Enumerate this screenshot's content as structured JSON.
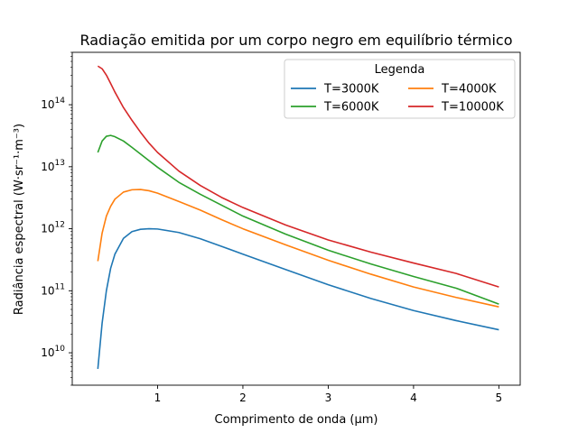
{
  "chart_data": {
    "type": "line",
    "title": "Radiação emitida por um corpo negro em equilíbrio térmico",
    "xlabel": "Comprimento de onda (μm)",
    "ylabel": "Radiância espectral (W·sr⁻¹·m⁻³)",
    "xlim": [
      0.0,
      5.25
    ],
    "ylim": [
      3000000000.0,
      700000000000000.0
    ],
    "yscale": "log",
    "grid": false,
    "x_ticks": [
      1,
      2,
      3,
      4,
      5
    ],
    "y_ticks": [
      {
        "value": 10000000000.0,
        "base": "10",
        "exp": "10"
      },
      {
        "value": 100000000000.0,
        "base": "10",
        "exp": "11"
      },
      {
        "value": 1000000000000.0,
        "base": "10",
        "exp": "12"
      },
      {
        "value": 10000000000000.0,
        "base": "10",
        "exp": "13"
      },
      {
        "value": 100000000000000.0,
        "base": "10",
        "exp": "14"
      }
    ],
    "legend": {
      "title": "Legenda",
      "position": "top-right",
      "columns": 2
    },
    "x": [
      0.3,
      0.35,
      0.4,
      0.45,
      0.5,
      0.6,
      0.7,
      0.8,
      0.9,
      1.0,
      1.25,
      1.5,
      1.75,
      2.0,
      2.5,
      3.0,
      3.5,
      4.0,
      4.5,
      5.0
    ],
    "series": [
      {
        "name": "T=3000K",
        "color": "#1f77b4",
        "values": [
          5500000000.0,
          30000000000.0,
          100000000000.0,
          230000000000.0,
          390000000000.0,
          700000000000.0,
          900000000000.0,
          980000000000.0,
          1000000000000.0,
          990000000000.0,
          870000000000.0,
          690000000000.0,
          520000000000.0,
          390000000000.0,
          220000000000.0,
          125000000000.0,
          75000000000.0,
          48000000000.0,
          33000000000.0,
          23500000000.0
        ]
      },
      {
        "name": "T=4000K",
        "color": "#ff7f0e",
        "values": [
          300000000000.0,
          850000000000.0,
          1600000000000.0,
          2300000000000.0,
          3000000000000.0,
          3900000000000.0,
          4250000000000.0,
          4300000000000.0,
          4100000000000.0,
          3750000000000.0,
          2750000000000.0,
          2000000000000.0,
          1400000000000.0,
          1000000000000.0,
          550000000000.0,
          310000000000.0,
          185000000000.0,
          115000000000.0,
          78000000000.0,
          55000000000.0
        ]
      },
      {
        "name": "T=6000K",
        "color": "#2ca02c",
        "values": [
          17000000000000.0,
          26000000000000.0,
          31000000000000.0,
          32000000000000.0,
          30500000000000.0,
          26000000000000.0,
          20500000000000.0,
          16000000000000.0,
          12500000000000.0,
          9800000000000.0,
          5600000000000.0,
          3600000000000.0,
          2400000000000.0,
          1600000000000.0,
          820000000000.0,
          450000000000.0,
          270000000000.0,
          170000000000.0,
          110000000000.0,
          61000000000.0
        ]
      },
      {
        "name": "T=10000K",
        "color": "#d62728",
        "values": [
          420000000000000.0,
          380000000000000.0,
          300000000000000.0,
          220000000000000.0,
          160000000000000.0,
          90000000000000.0,
          56000000000000.0,
          36000000000000.0,
          24000000000000.0,
          17000000000000.0,
          8500000000000.0,
          5000000000000.0,
          3200000000000.0,
          2200000000000.0,
          1150000000000.0,
          660000000000.0,
          420000000000.0,
          280000000000.0,
          190000000000.0,
          115000000000.0
        ]
      }
    ]
  }
}
